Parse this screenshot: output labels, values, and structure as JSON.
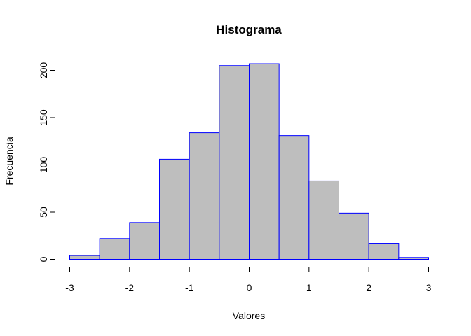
{
  "chart_data": {
    "type": "bar",
    "title": "Histograma",
    "xlabel": "Valores",
    "ylabel": "Frecuencia",
    "bin_edges": [
      -3,
      -2.5,
      -2,
      -1.5,
      -1,
      -0.5,
      0,
      0.5,
      1,
      1.5,
      2,
      2.5,
      3
    ],
    "values": [
      4,
      22,
      39,
      106,
      134,
      205,
      207,
      131,
      83,
      49,
      17,
      2
    ],
    "xlim": [
      -3,
      3
    ],
    "ylim": [
      0,
      200
    ],
    "x_ticks": [
      "-3",
      "-2",
      "-1",
      "0",
      "1",
      "2",
      "3"
    ],
    "y_ticks": [
      "0",
      "50",
      "100",
      "150",
      "200"
    ],
    "grid": false,
    "legend": "none",
    "colors": {
      "bar_fill": "#bebebe",
      "bar_border": "#0000ff",
      "axis": "#000000"
    }
  }
}
